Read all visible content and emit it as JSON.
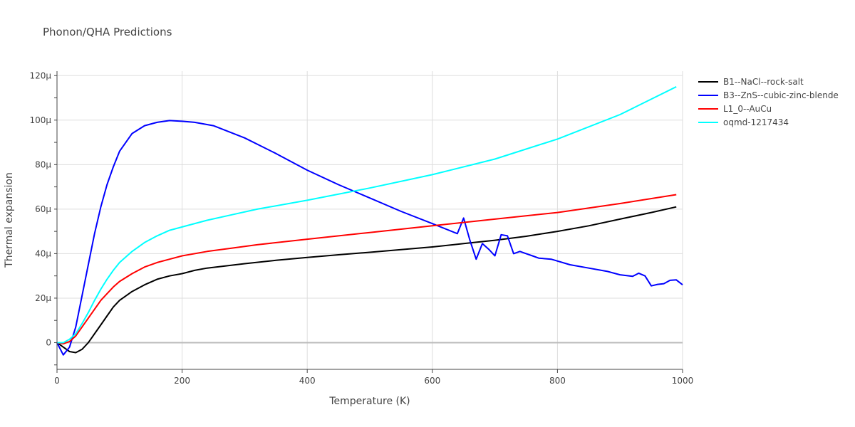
{
  "chart_data": {
    "type": "line",
    "title": "Phonon/QHA Predictions",
    "xlabel": "Temperature (K)",
    "ylabel": "Thermal expansion",
    "xlim": [
      0,
      1000
    ],
    "ylim": [
      -12,
      122
    ],
    "x_ticks": [
      0,
      200,
      400,
      600,
      800,
      1000
    ],
    "x_tick_labels": [
      "0",
      "200",
      "400",
      "600",
      "800",
      "1000"
    ],
    "y_ticks": [
      0,
      20,
      40,
      60,
      80,
      100,
      120
    ],
    "y_tick_labels": [
      "0",
      "20μ",
      "40μ",
      "60μ",
      "80μ",
      "100μ",
      "120μ"
    ],
    "grid": true,
    "legend_position": "top-right",
    "series": [
      {
        "name": "B1--NaCl--rock-salt",
        "color": "#000000",
        "points": [
          [
            0,
            0
          ],
          [
            10,
            -2
          ],
          [
            20,
            -4
          ],
          [
            30,
            -4.5
          ],
          [
            40,
            -3
          ],
          [
            50,
            0
          ],
          [
            60,
            4
          ],
          [
            70,
            8
          ],
          [
            80,
            12
          ],
          [
            90,
            16
          ],
          [
            100,
            19
          ],
          [
            120,
            23
          ],
          [
            140,
            26
          ],
          [
            160,
            28.5
          ],
          [
            180,
            30
          ],
          [
            200,
            31
          ],
          [
            220,
            32.5
          ],
          [
            240,
            33.5
          ],
          [
            270,
            34.5
          ],
          [
            300,
            35.5
          ],
          [
            350,
            37
          ],
          [
            400,
            38.3
          ],
          [
            450,
            39.5
          ],
          [
            500,
            40.6
          ],
          [
            550,
            41.8
          ],
          [
            600,
            43
          ],
          [
            650,
            44.5
          ],
          [
            700,
            46
          ],
          [
            750,
            47.8
          ],
          [
            800,
            50
          ],
          [
            850,
            52.5
          ],
          [
            900,
            55.5
          ],
          [
            950,
            58.5
          ],
          [
            990,
            61
          ]
        ]
      },
      {
        "name": "B3--ZnS--cubic-zinc-blende",
        "color": "#0000ff",
        "points": [
          [
            0,
            0
          ],
          [
            10,
            -5.5
          ],
          [
            20,
            -2
          ],
          [
            30,
            7
          ],
          [
            40,
            21
          ],
          [
            50,
            35
          ],
          [
            60,
            49
          ],
          [
            70,
            61
          ],
          [
            80,
            71
          ],
          [
            90,
            79
          ],
          [
            100,
            86
          ],
          [
            120,
            94
          ],
          [
            140,
            97.5
          ],
          [
            160,
            99
          ],
          [
            180,
            99.8
          ],
          [
            200,
            99.5
          ],
          [
            220,
            99
          ],
          [
            250,
            97.5
          ],
          [
            300,
            92
          ],
          [
            350,
            85
          ],
          [
            400,
            77.5
          ],
          [
            450,
            71
          ],
          [
            500,
            65
          ],
          [
            550,
            59
          ],
          [
            600,
            53.5
          ],
          [
            640,
            49
          ],
          [
            650,
            56
          ],
          [
            660,
            46
          ],
          [
            670,
            37.5
          ],
          [
            680,
            44.5
          ],
          [
            690,
            42
          ],
          [
            700,
            39
          ],
          [
            710,
            48.5
          ],
          [
            720,
            48
          ],
          [
            730,
            40
          ],
          [
            740,
            41
          ],
          [
            750,
            40
          ],
          [
            760,
            39
          ],
          [
            770,
            38
          ],
          [
            790,
            37.5
          ],
          [
            820,
            35
          ],
          [
            850,
            33.5
          ],
          [
            880,
            32
          ],
          [
            900,
            30.5
          ],
          [
            920,
            29.8
          ],
          [
            930,
            31.2
          ],
          [
            940,
            30
          ],
          [
            950,
            25.5
          ],
          [
            960,
            26.2
          ],
          [
            970,
            26.5
          ],
          [
            980,
            28
          ],
          [
            990,
            28.2
          ],
          [
            1000,
            26
          ]
        ]
      },
      {
        "name": "L1_0--AuCu",
        "color": "#ff0000",
        "points": [
          [
            0,
            0
          ],
          [
            10,
            -0.5
          ],
          [
            20,
            0.5
          ],
          [
            30,
            3
          ],
          [
            40,
            7
          ],
          [
            50,
            11
          ],
          [
            60,
            15
          ],
          [
            70,
            19
          ],
          [
            80,
            22
          ],
          [
            90,
            25
          ],
          [
            100,
            27.5
          ],
          [
            120,
            31
          ],
          [
            140,
            34
          ],
          [
            160,
            36
          ],
          [
            180,
            37.5
          ],
          [
            200,
            39
          ],
          [
            240,
            41
          ],
          [
            280,
            42.5
          ],
          [
            320,
            44
          ],
          [
            400,
            46.5
          ],
          [
            500,
            49.5
          ],
          [
            600,
            52.5
          ],
          [
            700,
            55.5
          ],
          [
            800,
            58.5
          ],
          [
            900,
            62.5
          ],
          [
            990,
            66.5
          ]
        ]
      },
      {
        "name": "oqmd-1217434",
        "color": "#00ffff",
        "points": [
          [
            0,
            0
          ],
          [
            10,
            0
          ],
          [
            20,
            1.5
          ],
          [
            30,
            4
          ],
          [
            40,
            8.5
          ],
          [
            50,
            13.5
          ],
          [
            60,
            19
          ],
          [
            70,
            24
          ],
          [
            80,
            28.5
          ],
          [
            90,
            32.5
          ],
          [
            100,
            36
          ],
          [
            120,
            41
          ],
          [
            140,
            45
          ],
          [
            160,
            48
          ],
          [
            180,
            50.5
          ],
          [
            200,
            52
          ],
          [
            240,
            55
          ],
          [
            280,
            57.5
          ],
          [
            320,
            60
          ],
          [
            400,
            64
          ],
          [
            500,
            69.5
          ],
          [
            600,
            75.5
          ],
          [
            700,
            82.5
          ],
          [
            800,
            91.5
          ],
          [
            900,
            102.5
          ],
          [
            990,
            115
          ]
        ]
      }
    ]
  }
}
